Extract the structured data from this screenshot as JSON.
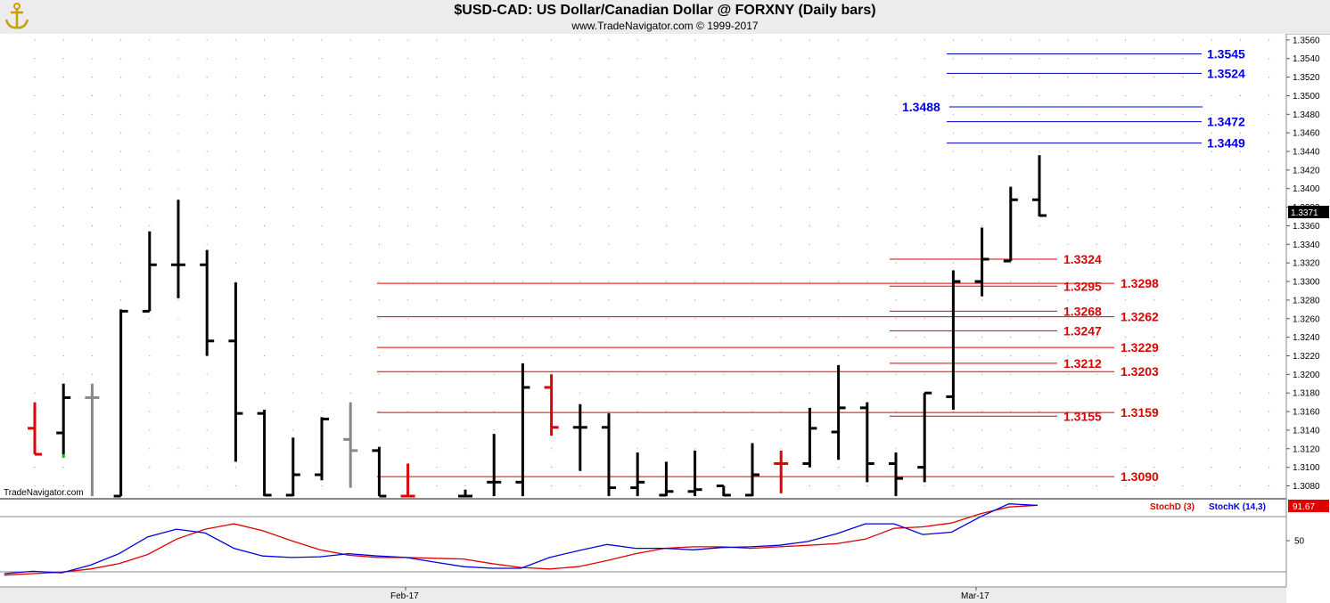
{
  "header": {
    "title": "$USD-CAD:  US Dollar/Canadian Dollar @ FORXNY  (Daily bars)",
    "subtitle": "www.TradeNavigator.com © 1999-2017",
    "watermark": "TradeNavigator.com"
  },
  "chart_data": [
    {
      "type": "ohlc",
      "name": "USD-CAD",
      "ylim": [
        1.3066,
        1.3568
      ],
      "y_ticks": [
        "1.3080",
        "1.3100",
        "1.3120",
        "1.3140",
        "1.3160",
        "1.3180",
        "1.3200",
        "1.3220",
        "1.3240",
        "1.3260",
        "1.3280",
        "1.3300",
        "1.3320",
        "1.3340",
        "1.3360",
        "1.3380",
        "1.3400",
        "1.3420",
        "1.3440",
        "1.3460",
        "1.3480",
        "1.3500",
        "1.3520",
        "1.3540",
        "1.3560"
      ],
      "x_labels": [
        "Feb-17",
        "Mar-17"
      ],
      "last_price": "1.3371",
      "bar_colors": {
        "up": "#000000",
        "red": "#e00000",
        "gray": "#888888",
        "green": "#00c000"
      },
      "bars": [
        {
          "i": 1,
          "o": 1.3142,
          "h": 1.317,
          "l": 1.3114,
          "c": 1.3114,
          "col": "red"
        },
        {
          "i": 2,
          "o": 1.3137,
          "h": 1.319,
          "l": 1.3114,
          "c": 1.3175,
          "col": "black",
          "lowcol": "green"
        },
        {
          "i": 3,
          "o": 1.3175,
          "h": 1.319,
          "l": 1.3066,
          "c": 1.3175,
          "col": "gray"
        },
        {
          "i": 4,
          "o": 1.3066,
          "h": 1.327,
          "l": 1.3066,
          "c": 1.3268,
          "col": "black"
        },
        {
          "i": 5,
          "o": 1.3268,
          "h": 1.3354,
          "l": 1.3268,
          "c": 1.3318,
          "col": "black"
        },
        {
          "i": 6,
          "o": 1.3318,
          "h": 1.3388,
          "l": 1.3282,
          "c": 1.3318,
          "col": "black"
        },
        {
          "i": 7,
          "o": 1.3318,
          "h": 1.3334,
          "l": 1.322,
          "c": 1.3236,
          "col": "black"
        },
        {
          "i": 8,
          "o": 1.3236,
          "h": 1.3299,
          "l": 1.3106,
          "c": 1.3158,
          "col": "black"
        },
        {
          "i": 9,
          "o": 1.3158,
          "h": 1.3162,
          "l": 1.3066,
          "c": 1.307,
          "col": "black"
        },
        {
          "i": 10,
          "o": 1.307,
          "h": 1.3132,
          "l": 1.3066,
          "c": 1.3092,
          "col": "black"
        },
        {
          "i": 11,
          "o": 1.3092,
          "h": 1.3154,
          "l": 1.3086,
          "c": 1.3152,
          "col": "black"
        },
        {
          "i": 12,
          "o": 1.313,
          "h": 1.317,
          "l": 1.3078,
          "c": 1.3118,
          "col": "gray"
        },
        {
          "i": 13,
          "o": 1.3118,
          "h": 1.3122,
          "l": 1.3066,
          "c": 1.3066,
          "col": "black"
        },
        {
          "i": 14,
          "o": 1.3066,
          "h": 1.3104,
          "l": 1.3066,
          "c": 1.3066,
          "col": "red"
        },
        {
          "i": 16,
          "o": 1.3066,
          "h": 1.3076,
          "l": 1.3066,
          "c": 1.3066,
          "col": "black"
        },
        {
          "i": 17,
          "o": 1.3084,
          "h": 1.3136,
          "l": 1.3066,
          "c": 1.3084,
          "col": "black"
        },
        {
          "i": 18,
          "o": 1.3084,
          "h": 1.3212,
          "l": 1.3066,
          "c": 1.3186,
          "col": "black"
        },
        {
          "i": 19,
          "o": 1.3186,
          "h": 1.32,
          "l": 1.3134,
          "c": 1.3143,
          "col": "red"
        },
        {
          "i": 20,
          "o": 1.3143,
          "h": 1.3168,
          "l": 1.3096,
          "c": 1.3143,
          "col": "black"
        },
        {
          "i": 21,
          "o": 1.3143,
          "h": 1.3158,
          "l": 1.3066,
          "c": 1.3078,
          "col": "black"
        },
        {
          "i": 22,
          "o": 1.3078,
          "h": 1.3116,
          "l": 1.3066,
          "c": 1.3084,
          "col": "black"
        },
        {
          "i": 23,
          "o": 1.307,
          "h": 1.3106,
          "l": 1.3066,
          "c": 1.3074,
          "col": "black"
        },
        {
          "i": 24,
          "o": 1.3074,
          "h": 1.3118,
          "l": 1.3066,
          "c": 1.3076,
          "col": "black"
        },
        {
          "i": 25,
          "o": 1.308,
          "h": 1.308,
          "l": 1.3066,
          "c": 1.307,
          "col": "black"
        },
        {
          "i": 26,
          "o": 1.307,
          "h": 1.3126,
          "l": 1.3066,
          "c": 1.3092,
          "col": "black"
        },
        {
          "i": 27,
          "o": 1.3104,
          "h": 1.3118,
          "l": 1.3072,
          "c": 1.3104,
          "col": "red"
        },
        {
          "i": 28,
          "o": 1.3104,
          "h": 1.3164,
          "l": 1.31,
          "c": 1.3142,
          "col": "black"
        },
        {
          "i": 29,
          "o": 1.3138,
          "h": 1.321,
          "l": 1.3108,
          "c": 1.3164,
          "col": "black"
        },
        {
          "i": 30,
          "o": 1.3164,
          "h": 1.317,
          "l": 1.3084,
          "c": 1.3104,
          "col": "black"
        },
        {
          "i": 31,
          "o": 1.3104,
          "h": 1.3116,
          "l": 1.3066,
          "c": 1.3088,
          "col": "black"
        },
        {
          "i": 32,
          "o": 1.31,
          "h": 1.318,
          "l": 1.3084,
          "c": 1.318,
          "col": "black"
        },
        {
          "i": 33,
          "o": 1.3176,
          "h": 1.3312,
          "l": 1.3162,
          "c": 1.33,
          "col": "black"
        },
        {
          "i": 34,
          "o": 1.33,
          "h": 1.3358,
          "l": 1.3284,
          "c": 1.3324,
          "col": "black"
        },
        {
          "i": 35,
          "o": 1.3322,
          "h": 1.3402,
          "l": 1.3322,
          "c": 1.3388,
          "col": "black"
        },
        {
          "i": 36,
          "o": 1.3388,
          "h": 1.3436,
          "l": 1.337,
          "c": 1.3371,
          "col": "black"
        }
      ],
      "blue_levels": [
        {
          "value": 1.3545,
          "label": "1.3545",
          "side": "right"
        },
        {
          "value": 1.3524,
          "label": "1.3524",
          "side": "right"
        },
        {
          "value": 1.3488,
          "label": "1.3488",
          "side": "left"
        },
        {
          "value": 1.3472,
          "label": "1.3472",
          "side": "right"
        },
        {
          "value": 1.3449,
          "label": "1.3449",
          "side": "right"
        }
      ],
      "red_levels_short": [
        {
          "value": 1.3324,
          "label": "1.3324"
        },
        {
          "value": 1.3295,
          "label": "1.3295"
        },
        {
          "value": 1.3268,
          "label": "1.3268"
        },
        {
          "value": 1.3247,
          "label": "1.3247"
        },
        {
          "value": 1.3212,
          "label": "1.3212"
        },
        {
          "value": 1.3155,
          "label": "1.3155"
        }
      ],
      "red_levels_long": [
        {
          "value": 1.3298,
          "label": "1.3298"
        },
        {
          "value": 1.3262,
          "label": "1.3262"
        },
        {
          "value": 1.3229,
          "label": "1.3229"
        },
        {
          "value": 1.3203,
          "label": "1.3203"
        },
        {
          "value": 1.3159,
          "label": "1.3159"
        },
        {
          "value": 1.309,
          "label": "1.3090"
        }
      ]
    },
    {
      "type": "line",
      "name": "Stochastic",
      "ylim": [
        0,
        100
      ],
      "y_ticks": [
        "50"
      ],
      "last_value": "91.67",
      "series": [
        {
          "name": "StochD (3)",
          "color": "#e00000",
          "values": [
            5,
            7,
            9,
            13,
            20,
            32,
            52,
            65,
            72,
            63,
            50,
            38,
            31,
            28,
            28,
            27,
            26,
            20,
            15,
            13,
            16,
            24,
            33,
            40,
            42,
            42,
            40,
            42,
            44,
            46,
            52,
            66,
            68,
            73,
            85,
            94,
            96
          ]
        },
        {
          "name": "StochK (14,3)",
          "color": "#0000e0",
          "values": [
            7,
            10,
            8,
            18,
            33,
            55,
            65,
            60,
            40,
            30,
            28,
            29,
            33,
            30,
            28,
            22,
            16,
            14,
            14,
            28,
            37,
            45,
            40,
            40,
            38,
            41,
            42,
            44,
            49,
            59,
            72,
            72,
            58,
            61,
            81,
            98,
            96
          ]
        }
      ]
    }
  ]
}
